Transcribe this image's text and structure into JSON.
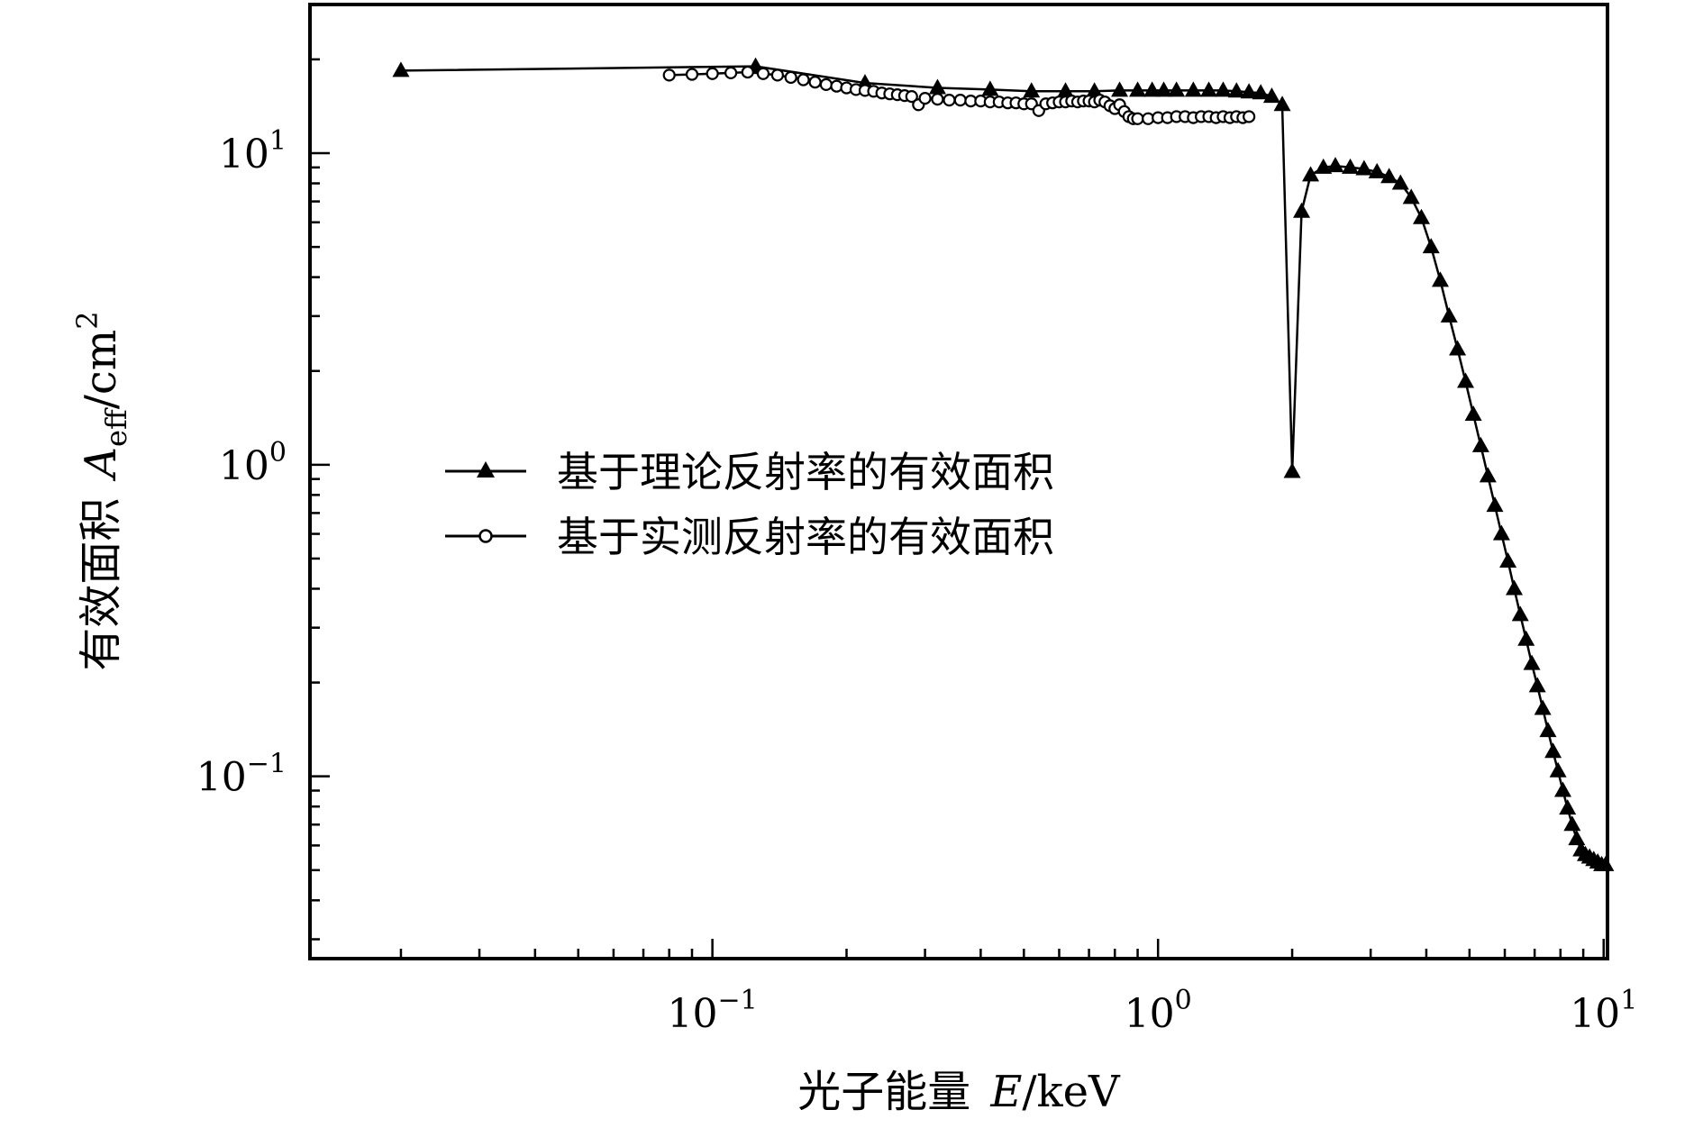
{
  "chart_data": {
    "type": "line",
    "title": "",
    "xlabel": "光子能量 E/keV",
    "ylabel": "有效面积 Aeff/cm2",
    "xlabel_parts": {
      "text": "光子能量",
      "sym": "E",
      "unit": "/keV"
    },
    "ylabel_parts": {
      "text": "有效面积",
      "sym": "A",
      "sub": "eff",
      "unit": "/cm",
      "sup": "2"
    },
    "xscale": "log",
    "yscale": "log",
    "xlim": [
      0.0125,
      10.2
    ],
    "ylim": [
      0.026,
      30
    ],
    "x_ticks": [
      {
        "base": "10",
        "exp": "−1",
        "value": 0.1
      },
      {
        "base": "10",
        "exp": "0",
        "value": 1
      },
      {
        "base": "10",
        "exp": "1",
        "value": 10
      }
    ],
    "y_ticks": [
      {
        "base": "10",
        "exp": "−1",
        "value": 0.1
      },
      {
        "base": "10",
        "exp": "0",
        "value": 1
      },
      {
        "base": "10",
        "exp": "1",
        "value": 10
      }
    ],
    "grid": false,
    "legend_position": "center-left",
    "series": [
      {
        "name": "基于理论反射率的有效面积",
        "marker": "triangle",
        "x": [
          0.02,
          0.125,
          0.22,
          0.32,
          0.42,
          0.52,
          0.62,
          0.72,
          0.82,
          0.9,
          0.97,
          1.03,
          1.1,
          1.2,
          1.3,
          1.4,
          1.5,
          1.6,
          1.7,
          1.8,
          1.9,
          2.0,
          2.1,
          2.2,
          2.35,
          2.5,
          2.7,
          2.9,
          3.1,
          3.3,
          3.5,
          3.7,
          3.9,
          4.1,
          4.3,
          4.5,
          4.7,
          4.9,
          5.1,
          5.3,
          5.5,
          5.7,
          5.9,
          6.1,
          6.3,
          6.5,
          6.7,
          6.9,
          7.1,
          7.3,
          7.5,
          7.7,
          7.9,
          8.1,
          8.3,
          8.5,
          8.7,
          8.9,
          9.1,
          9.3,
          9.5,
          9.7,
          9.9,
          10.1
        ],
        "y": [
          18.4,
          19.0,
          16.8,
          16.2,
          16.0,
          15.8,
          15.8,
          15.8,
          15.9,
          15.9,
          15.9,
          15.9,
          15.9,
          15.9,
          15.9,
          15.9,
          15.8,
          15.7,
          15.6,
          15.2,
          14.3,
          0.95,
          6.5,
          8.5,
          9.0,
          9.1,
          9.0,
          8.9,
          8.7,
          8.4,
          8.0,
          7.2,
          6.2,
          5.0,
          3.9,
          3.0,
          2.35,
          1.85,
          1.45,
          1.15,
          0.92,
          0.74,
          0.6,
          0.49,
          0.4,
          0.33,
          0.275,
          0.23,
          0.195,
          0.165,
          0.14,
          0.12,
          0.104,
          0.09,
          0.079,
          0.07,
          0.063,
          0.058,
          0.056,
          0.055,
          0.054,
          0.053,
          0.052,
          0.052
        ]
      },
      {
        "name": "基于实测反射率的有效面积",
        "marker": "circle",
        "x": [
          0.08,
          0.09,
          0.1,
          0.11,
          0.12,
          0.13,
          0.14,
          0.15,
          0.16,
          0.17,
          0.18,
          0.19,
          0.2,
          0.21,
          0.22,
          0.23,
          0.24,
          0.25,
          0.26,
          0.27,
          0.28,
          0.29,
          0.3,
          0.32,
          0.34,
          0.36,
          0.38,
          0.4,
          0.42,
          0.44,
          0.46,
          0.48,
          0.5,
          0.52,
          0.54,
          0.56,
          0.58,
          0.6,
          0.62,
          0.64,
          0.66,
          0.68,
          0.7,
          0.72,
          0.74,
          0.76,
          0.78,
          0.8,
          0.82,
          0.84,
          0.86,
          0.88,
          0.9,
          0.95,
          1.0,
          1.05,
          1.1,
          1.15,
          1.2,
          1.25,
          1.3,
          1.35,
          1.4,
          1.45,
          1.5,
          1.55,
          1.6
        ],
        "y": [
          17.8,
          17.9,
          18.0,
          18.1,
          18.2,
          18.0,
          17.8,
          17.5,
          17.2,
          16.9,
          16.6,
          16.4,
          16.2,
          16.0,
          15.9,
          15.8,
          15.6,
          15.5,
          15.4,
          15.3,
          15.2,
          14.3,
          15.0,
          14.9,
          14.8,
          14.8,
          14.7,
          14.7,
          14.6,
          14.6,
          14.5,
          14.5,
          14.4,
          14.4,
          13.7,
          14.4,
          14.5,
          14.6,
          14.6,
          14.7,
          14.6,
          14.7,
          14.7,
          14.6,
          14.8,
          14.6,
          14.2,
          13.9,
          14.3,
          13.6,
          13.1,
          12.9,
          12.9,
          12.9,
          13.0,
          13.0,
          13.1,
          13.1,
          13.0,
          13.1,
          13.1,
          13.0,
          13.1,
          13.0,
          13.1,
          13.0,
          13.1
        ]
      }
    ]
  }
}
